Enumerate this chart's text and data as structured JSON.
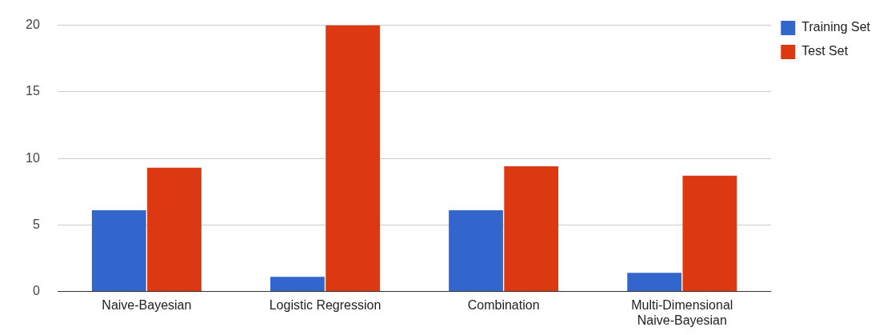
{
  "chart_data": {
    "type": "bar",
    "categories": [
      "Naive-Bayesian",
      "Logistic Regression",
      "Combination",
      "Multi-Dimensional Naive-Bayesian"
    ],
    "series": [
      {
        "name": "Training Set",
        "color": "#3366cc",
        "values": [
          6.1,
          1.1,
          6.1,
          1.4
        ]
      },
      {
        "name": "Test Set",
        "color": "#dc3912",
        "values": [
          9.3,
          20,
          9.4,
          8.7
        ]
      }
    ],
    "ylim": [
      0,
      20
    ],
    "yticks": [
      0,
      5,
      10,
      15,
      20
    ],
    "grid": "y",
    "legend": "top right"
  }
}
